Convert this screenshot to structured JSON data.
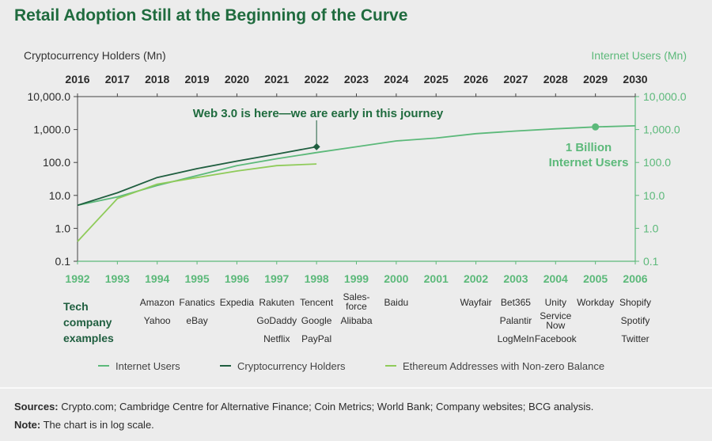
{
  "chart_data": {
    "type": "line",
    "title": "Retail Adoption Still at the Beginning of the Curve",
    "ylabel_left": "Cryptocurrency Holders (Mn)",
    "ylabel_right": "Internet Users (Mn)",
    "scale": "log",
    "ylim": [
      0.1,
      10000
    ],
    "yticks": [
      {
        "value": 0.1,
        "label": "0.1"
      },
      {
        "value": 1,
        "label": "1.0"
      },
      {
        "value": 10,
        "label": "10.0"
      },
      {
        "value": 100,
        "label": "100.0"
      },
      {
        "value": 1000,
        "label": "1,000.0"
      },
      {
        "value": 10000,
        "label": "10,000.0"
      }
    ],
    "x_top": [
      "2016",
      "2017",
      "2018",
      "2019",
      "2020",
      "2021",
      "2022",
      "2023",
      "2024",
      "2025",
      "2026",
      "2027",
      "2028",
      "2029",
      "2030"
    ],
    "x_bottom": [
      "1992",
      "1993",
      "1994",
      "1995",
      "1996",
      "1997",
      "1998",
      "1999",
      "2000",
      "2001",
      "2002",
      "2003",
      "2004",
      "2005",
      "2006"
    ],
    "series": [
      {
        "name": "Internet Users",
        "color": "#5cb97a",
        "values": [
          5,
          9,
          20,
          40,
          80,
          130,
          200,
          300,
          450,
          550,
          750,
          900,
          1050,
          1200,
          1300
        ]
      },
      {
        "name": "Cryptocurrency Holders",
        "color": "#1f5e3f",
        "values": [
          5,
          12,
          35,
          65,
          110,
          180,
          300
        ]
      },
      {
        "name": "Ethereum Addresses with Non-zero Balance",
        "color": "#8fcb5a",
        "values": [
          0.4,
          8,
          22,
          35,
          55,
          80,
          90
        ]
      }
    ],
    "annotations": [
      {
        "text": "Web 3.0 is here—we are early in this journey",
        "x_index": 6
      },
      {
        "text_lines": [
          "1 Billion",
          "Internet Users"
        ],
        "x_index": 13
      }
    ]
  },
  "tech_label_lines": [
    "Tech",
    "company",
    "examples"
  ],
  "tech_examples": [
    [],
    [],
    [
      "Amazon",
      "Yahoo"
    ],
    [
      "Fanatics",
      "eBay"
    ],
    [
      "Expedia"
    ],
    [
      "Rakuten",
      "GoDaddy",
      "Netflix"
    ],
    [
      "Tencent",
      "Google",
      "PayPal"
    ],
    [
      "Sales-force",
      "Alibaba"
    ],
    [
      "Baidu"
    ],
    [],
    [
      "Wayfair"
    ],
    [
      "Bet365",
      "Palantir",
      "LogMeIn"
    ],
    [
      "Unity",
      "Service Now",
      "Facebook"
    ],
    [
      "Workday"
    ],
    [
      "Shopify",
      "Spotify",
      "Twitter"
    ]
  ],
  "sources_label": "Sources:",
  "sources_text": "Crypto.com; Cambridge Centre for Alternative Finance; Coin Metrics; World Bank; Company websites; BCG analysis.",
  "note_label": "Note:",
  "note_text": "The chart is in log scale."
}
